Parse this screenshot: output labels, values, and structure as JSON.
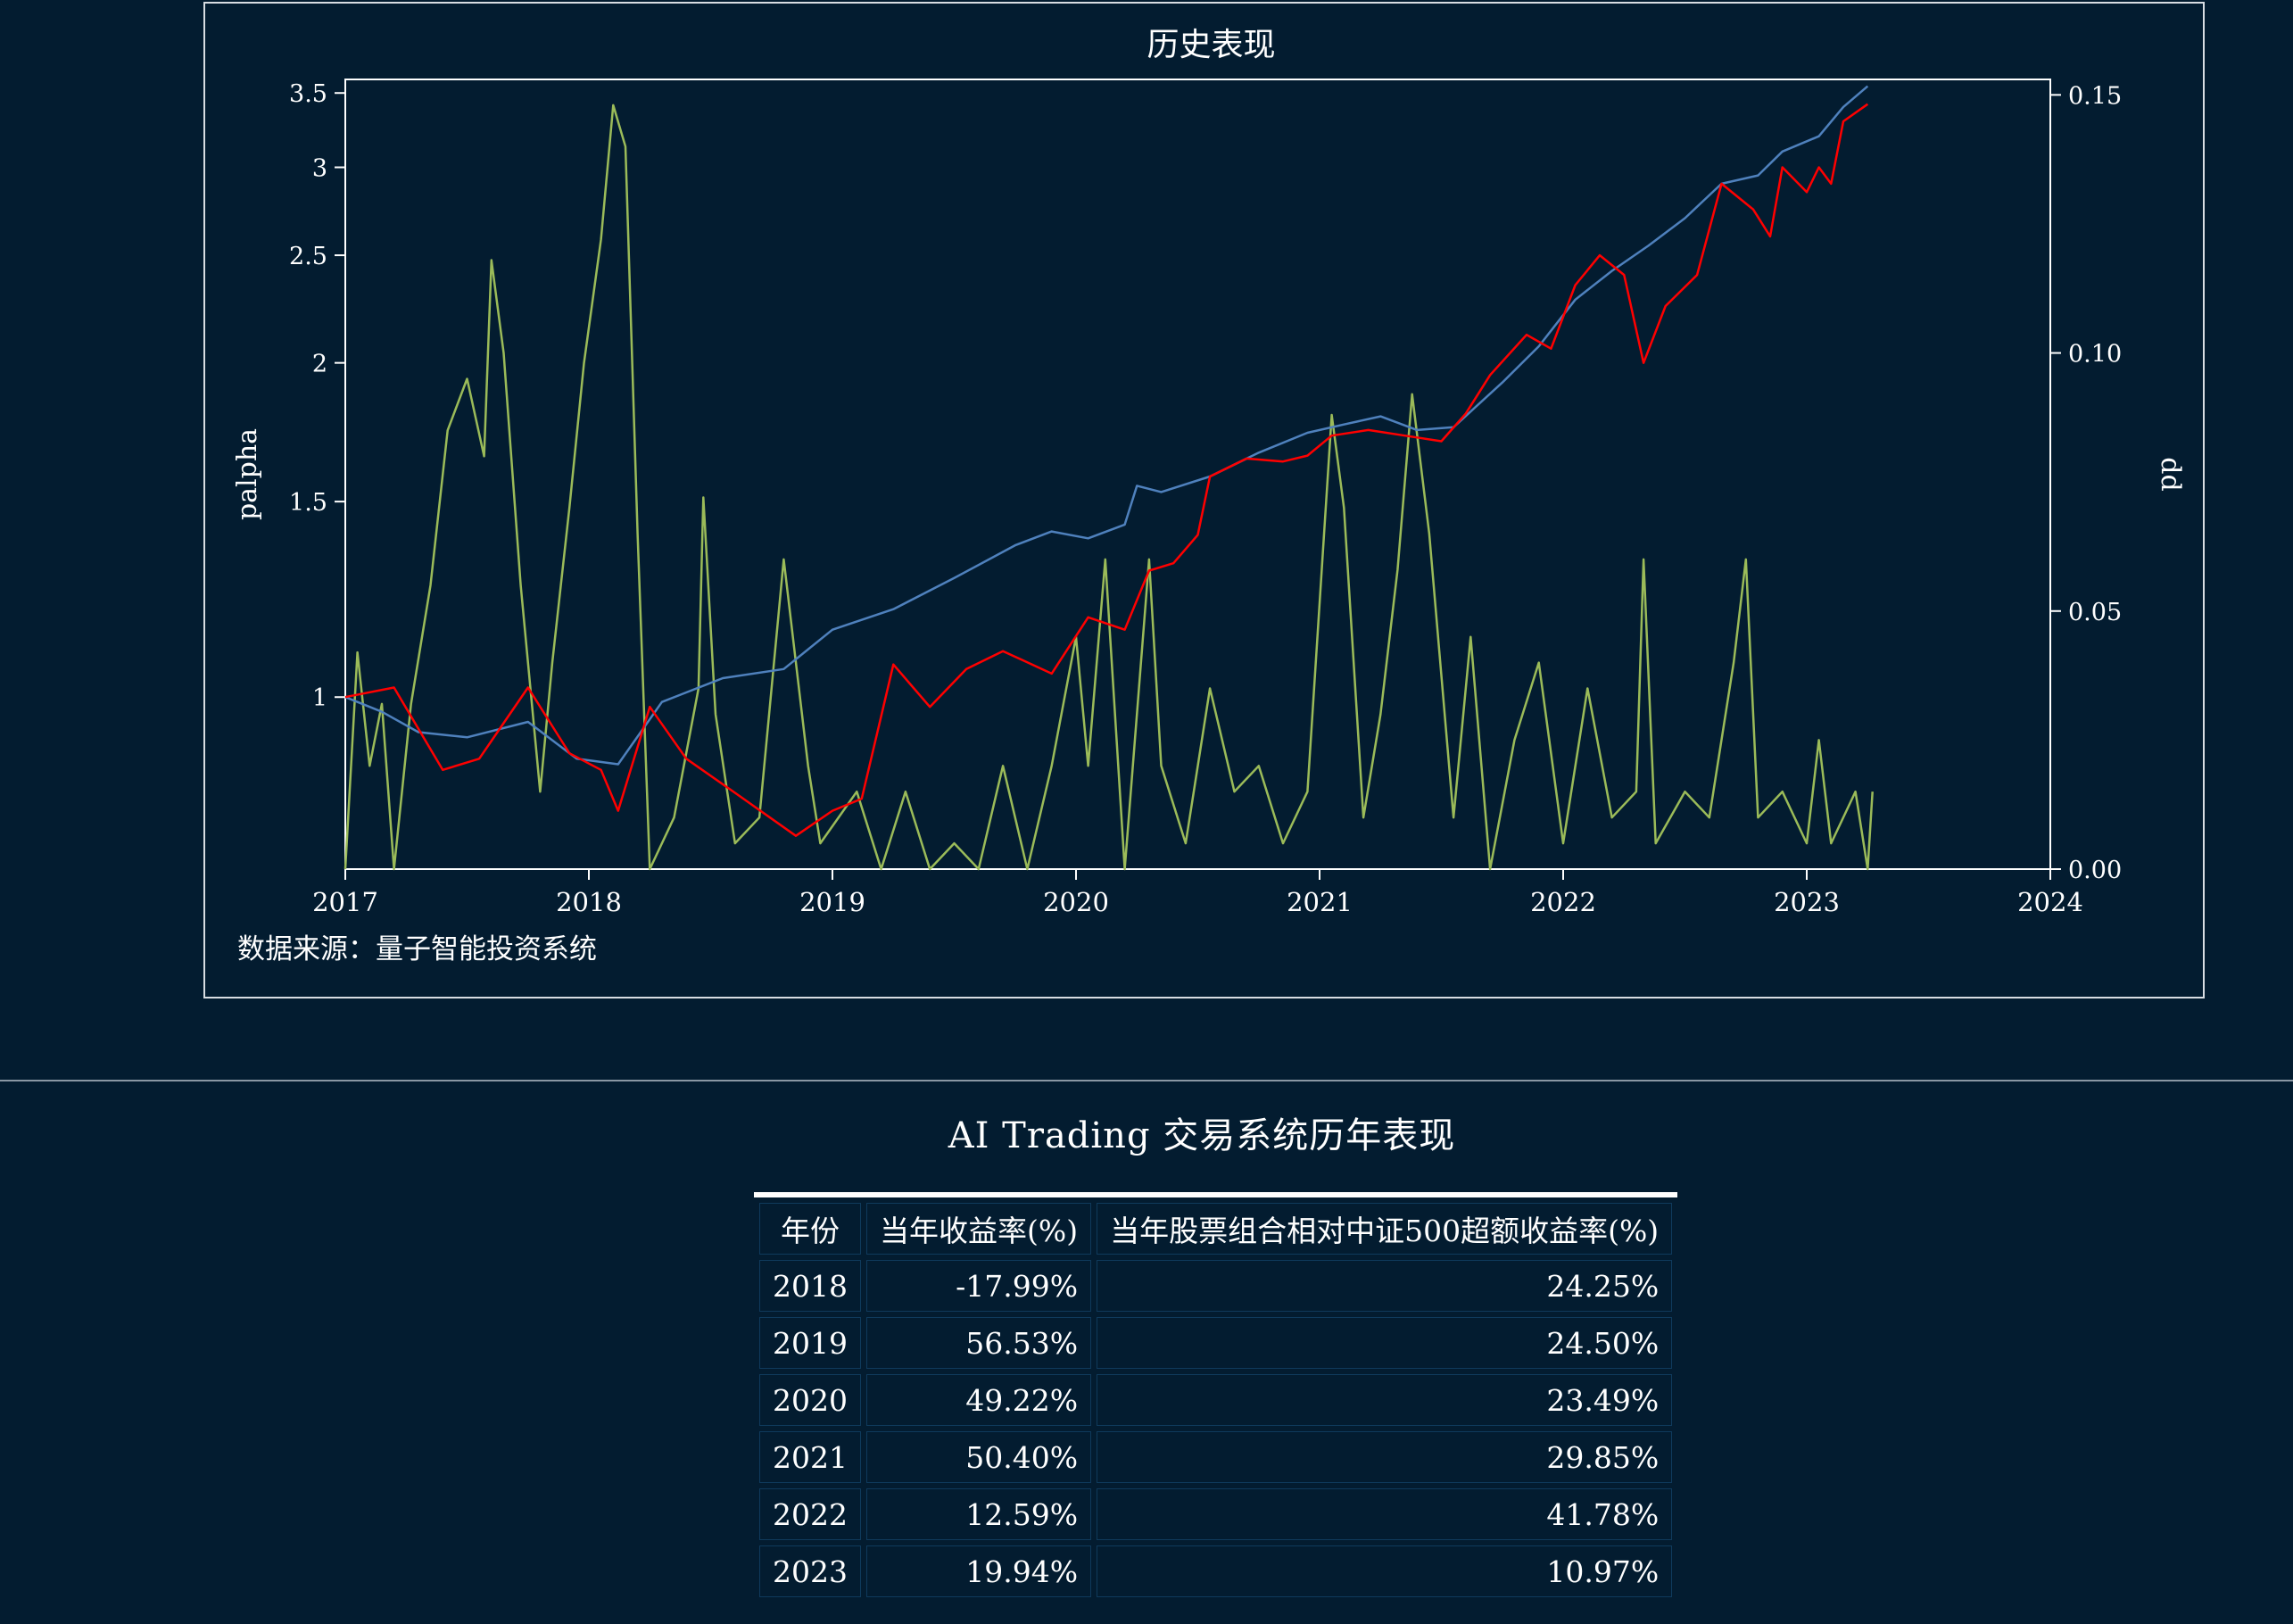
{
  "chart_data": {
    "type": "line",
    "title": "历史表现",
    "source_note": "数据来源：量子智能投资系统",
    "y_left_label": "palpha",
    "y_right_label": "dd",
    "y_left_scale": "log",
    "y_left_ticks": [
      "1",
      "1.5",
      "2",
      "2.5",
      "3",
      "3.5"
    ],
    "y_right_ticks": [
      "0.00",
      "0.05",
      "0.10",
      "0.15"
    ],
    "x_ticks": [
      "2017",
      "2018",
      "2019",
      "2020",
      "2021",
      "2022",
      "2023",
      "2024"
    ],
    "xlim": [
      2017.0,
      2024.0
    ],
    "ylim_left": [
      0.7,
      3.6
    ],
    "ylim_right": [
      0.0,
      0.153
    ],
    "legend": "none",
    "grid": false,
    "series": [
      {
        "axis": "left",
        "color": "#4f81bd",
        "points": [
          [
            2017.0,
            1.0
          ],
          [
            2017.15,
            0.97
          ],
          [
            2017.3,
            0.93
          ],
          [
            2017.5,
            0.92
          ],
          [
            2017.75,
            0.95
          ],
          [
            2017.95,
            0.88
          ],
          [
            2018.12,
            0.87
          ],
          [
            2018.3,
            0.99
          ],
          [
            2018.55,
            1.04
          ],
          [
            2018.8,
            1.06
          ],
          [
            2019.0,
            1.15
          ],
          [
            2019.25,
            1.2
          ],
          [
            2019.5,
            1.28
          ],
          [
            2019.75,
            1.37
          ],
          [
            2019.9,
            1.41
          ],
          [
            2020.05,
            1.39
          ],
          [
            2020.2,
            1.43
          ],
          [
            2020.25,
            1.55
          ],
          [
            2020.35,
            1.53
          ],
          [
            2020.55,
            1.58
          ],
          [
            2020.75,
            1.66
          ],
          [
            2020.95,
            1.73
          ],
          [
            2021.1,
            1.76
          ],
          [
            2021.25,
            1.79
          ],
          [
            2021.4,
            1.74
          ],
          [
            2021.55,
            1.75
          ],
          [
            2021.75,
            1.92
          ],
          [
            2021.9,
            2.07
          ],
          [
            2022.05,
            2.28
          ],
          [
            2022.2,
            2.42
          ],
          [
            2022.35,
            2.55
          ],
          [
            2022.5,
            2.7
          ],
          [
            2022.65,
            2.9
          ],
          [
            2022.8,
            2.95
          ],
          [
            2022.9,
            3.1
          ],
          [
            2023.05,
            3.2
          ],
          [
            2023.15,
            3.4
          ],
          [
            2023.25,
            3.55
          ]
        ]
      },
      {
        "axis": "left",
        "color": "#ff0000",
        "points": [
          [
            2017.0,
            1.0
          ],
          [
            2017.2,
            1.02
          ],
          [
            2017.4,
            0.86
          ],
          [
            2017.55,
            0.88
          ],
          [
            2017.75,
            1.02
          ],
          [
            2017.92,
            0.89
          ],
          [
            2018.05,
            0.86
          ],
          [
            2018.12,
            0.79
          ],
          [
            2018.25,
            0.98
          ],
          [
            2018.4,
            0.88
          ],
          [
            2018.6,
            0.82
          ],
          [
            2018.85,
            0.75
          ],
          [
            2019.0,
            0.79
          ],
          [
            2019.12,
            0.81
          ],
          [
            2019.25,
            1.07
          ],
          [
            2019.4,
            0.98
          ],
          [
            2019.55,
            1.06
          ],
          [
            2019.7,
            1.1
          ],
          [
            2019.9,
            1.05
          ],
          [
            2020.05,
            1.18
          ],
          [
            2020.2,
            1.15
          ],
          [
            2020.3,
            1.3
          ],
          [
            2020.4,
            1.32
          ],
          [
            2020.5,
            1.4
          ],
          [
            2020.55,
            1.58
          ],
          [
            2020.7,
            1.64
          ],
          [
            2020.85,
            1.63
          ],
          [
            2020.95,
            1.65
          ],
          [
            2021.05,
            1.72
          ],
          [
            2021.2,
            1.74
          ],
          [
            2021.35,
            1.72
          ],
          [
            2021.5,
            1.7
          ],
          [
            2021.6,
            1.8
          ],
          [
            2021.7,
            1.95
          ],
          [
            2021.85,
            2.12
          ],
          [
            2021.95,
            2.06
          ],
          [
            2022.05,
            2.35
          ],
          [
            2022.15,
            2.5
          ],
          [
            2022.25,
            2.4
          ],
          [
            2022.33,
            2.0
          ],
          [
            2022.42,
            2.25
          ],
          [
            2022.55,
            2.4
          ],
          [
            2022.65,
            2.9
          ],
          [
            2022.78,
            2.75
          ],
          [
            2022.85,
            2.6
          ],
          [
            2022.9,
            3.0
          ],
          [
            2023.0,
            2.85
          ],
          [
            2023.05,
            3.0
          ],
          [
            2023.1,
            2.9
          ],
          [
            2023.15,
            3.3
          ],
          [
            2023.25,
            3.42
          ]
        ]
      },
      {
        "axis": "right",
        "color": "#9bbb59",
        "points": [
          [
            2017.0,
            0.0
          ],
          [
            2017.05,
            0.042
          ],
          [
            2017.1,
            0.02
          ],
          [
            2017.15,
            0.032
          ],
          [
            2017.2,
            0.0
          ],
          [
            2017.27,
            0.032
          ],
          [
            2017.35,
            0.055
          ],
          [
            2017.42,
            0.085
          ],
          [
            2017.5,
            0.095
          ],
          [
            2017.57,
            0.08
          ],
          [
            2017.6,
            0.118
          ],
          [
            2017.65,
            0.1
          ],
          [
            2017.72,
            0.055
          ],
          [
            2017.8,
            0.015
          ],
          [
            2017.85,
            0.04
          ],
          [
            2017.92,
            0.07
          ],
          [
            2017.98,
            0.098
          ],
          [
            2018.05,
            0.122
          ],
          [
            2018.1,
            0.148
          ],
          [
            2018.15,
            0.14
          ],
          [
            2018.2,
            0.065
          ],
          [
            2018.25,
            0.0
          ],
          [
            2018.35,
            0.01
          ],
          [
            2018.45,
            0.035
          ],
          [
            2018.47,
            0.072
          ],
          [
            2018.52,
            0.03
          ],
          [
            2018.6,
            0.005
          ],
          [
            2018.7,
            0.01
          ],
          [
            2018.8,
            0.06
          ],
          [
            2018.9,
            0.02
          ],
          [
            2018.95,
            0.005
          ],
          [
            2019.1,
            0.015
          ],
          [
            2019.2,
            0.0
          ],
          [
            2019.3,
            0.015
          ],
          [
            2019.4,
            0.0
          ],
          [
            2019.5,
            0.005
          ],
          [
            2019.6,
            0.0
          ],
          [
            2019.7,
            0.02
          ],
          [
            2019.8,
            0.0
          ],
          [
            2019.9,
            0.02
          ],
          [
            2020.0,
            0.045
          ],
          [
            2020.05,
            0.02
          ],
          [
            2020.12,
            0.06
          ],
          [
            2020.2,
            0.0
          ],
          [
            2020.3,
            0.06
          ],
          [
            2020.35,
            0.02
          ],
          [
            2020.45,
            0.005
          ],
          [
            2020.55,
            0.035
          ],
          [
            2020.65,
            0.015
          ],
          [
            2020.75,
            0.02
          ],
          [
            2020.85,
            0.005
          ],
          [
            2020.95,
            0.015
          ],
          [
            2021.05,
            0.088
          ],
          [
            2021.1,
            0.07
          ],
          [
            2021.18,
            0.01
          ],
          [
            2021.25,
            0.03
          ],
          [
            2021.32,
            0.058
          ],
          [
            2021.38,
            0.092
          ],
          [
            2021.45,
            0.065
          ],
          [
            2021.55,
            0.01
          ],
          [
            2021.62,
            0.045
          ],
          [
            2021.7,
            0.0
          ],
          [
            2021.8,
            0.025
          ],
          [
            2021.9,
            0.04
          ],
          [
            2022.0,
            0.005
          ],
          [
            2022.1,
            0.035
          ],
          [
            2022.2,
            0.01
          ],
          [
            2022.3,
            0.015
          ],
          [
            2022.33,
            0.06
          ],
          [
            2022.38,
            0.005
          ],
          [
            2022.5,
            0.015
          ],
          [
            2022.6,
            0.01
          ],
          [
            2022.7,
            0.04
          ],
          [
            2022.75,
            0.06
          ],
          [
            2022.8,
            0.01
          ],
          [
            2022.9,
            0.015
          ],
          [
            2023.0,
            0.005
          ],
          [
            2023.05,
            0.025
          ],
          [
            2023.1,
            0.005
          ],
          [
            2023.2,
            0.015
          ],
          [
            2023.25,
            0.0
          ],
          [
            2023.27,
            0.015
          ]
        ]
      }
    ]
  },
  "table": {
    "title": "AI Trading 交易系统历年表现",
    "headers": [
      "年份",
      "当年收益率(%)",
      "当年股票组合相对中证500超额收益率(%)"
    ],
    "rows": [
      {
        "year": "2018",
        "ret": "-17.99%",
        "excess": "24.25%"
      },
      {
        "year": "2019",
        "ret": "56.53%",
        "excess": "24.50%"
      },
      {
        "year": "2020",
        "ret": "49.22%",
        "excess": "23.49%"
      },
      {
        "year": "2021",
        "ret": "50.40%",
        "excess": "29.85%"
      },
      {
        "year": "2022",
        "ret": "12.59%",
        "excess": "41.78%"
      },
      {
        "year": "2023",
        "ret": "19.94%",
        "excess": "10.97%"
      }
    ]
  }
}
